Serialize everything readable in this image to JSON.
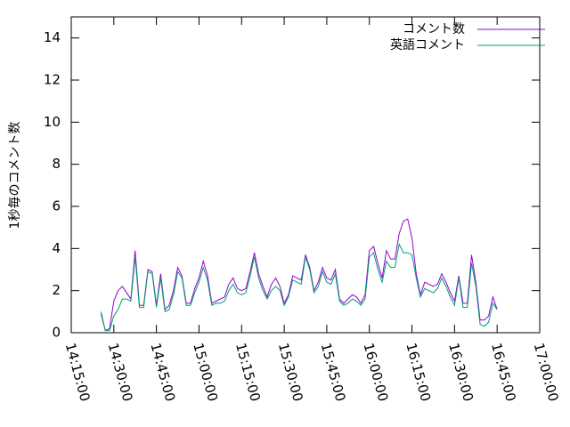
{
  "chart_data": {
    "type": "line",
    "ylabel": "1秒毎のコメント数",
    "x": [
      "14:25:30",
      "14:27:00",
      "14:28:30",
      "14:30:00",
      "14:31:30",
      "14:33:00",
      "14:34:30",
      "14:36:00",
      "14:37:30",
      "14:39:00",
      "14:40:30",
      "14:42:00",
      "14:43:30",
      "14:45:00",
      "14:46:30",
      "14:48:00",
      "14:49:30",
      "14:51:00",
      "14:52:30",
      "14:54:00",
      "14:55:30",
      "14:57:00",
      "14:58:30",
      "15:00:00",
      "15:01:30",
      "15:03:00",
      "15:04:30",
      "15:06:00",
      "15:07:30",
      "15:09:00",
      "15:10:30",
      "15:12:00",
      "15:13:30",
      "15:15:00",
      "15:16:30",
      "15:18:00",
      "15:19:30",
      "15:21:00",
      "15:22:30",
      "15:24:00",
      "15:25:30",
      "15:27:00",
      "15:28:30",
      "15:30:00",
      "15:31:30",
      "15:33:00",
      "15:34:30",
      "15:36:00",
      "15:37:30",
      "15:39:00",
      "15:40:30",
      "15:42:00",
      "15:43:30",
      "15:45:00",
      "15:46:30",
      "15:48:00",
      "15:49:30",
      "15:51:00",
      "15:52:30",
      "15:54:00",
      "15:55:30",
      "15:57:00",
      "15:58:30",
      "16:00:00",
      "16:01:30",
      "16:03:00",
      "16:04:30",
      "16:06:00",
      "16:07:30",
      "16:09:00",
      "16:10:30",
      "16:12:00",
      "16:13:30",
      "16:15:00",
      "16:16:30",
      "16:18:00",
      "16:19:30",
      "16:21:00",
      "16:22:30",
      "16:24:00",
      "16:25:30",
      "16:27:00",
      "16:28:30",
      "16:30:00",
      "16:31:30",
      "16:33:00",
      "16:34:30",
      "16:36:00",
      "16:37:30",
      "16:39:00",
      "16:40:30",
      "16:42:00",
      "16:43:30",
      "16:45:00"
    ],
    "series": [
      {
        "name": "コメント数",
        "color": "#9400d3",
        "values": [
          0.9,
          0.1,
          0.2,
          1.5,
          2.0,
          2.2,
          1.9,
          1.6,
          3.9,
          1.3,
          1.3,
          3.0,
          2.9,
          1.3,
          2.8,
          1.1,
          1.3,
          2.0,
          3.1,
          2.7,
          1.4,
          1.4,
          2.1,
          2.6,
          3.4,
          2.7,
          1.4,
          1.5,
          1.6,
          1.7,
          2.3,
          2.6,
          2.1,
          2.0,
          2.1,
          2.9,
          3.8,
          2.8,
          2.2,
          1.7,
          2.3,
          2.6,
          2.2,
          1.4,
          1.8,
          2.7,
          2.6,
          2.5,
          3.7,
          3.1,
          2.0,
          2.4,
          3.1,
          2.6,
          2.5,
          3.0,
          1.6,
          1.4,
          1.6,
          1.8,
          1.7,
          1.4,
          1.8,
          3.9,
          4.1,
          3.3,
          2.6,
          3.9,
          3.5,
          3.5,
          4.7,
          5.3,
          5.4,
          4.5,
          2.8,
          1.8,
          2.4,
          2.3,
          2.2,
          2.3,
          2.8,
          2.4,
          1.9,
          1.5,
          2.7,
          1.4,
          1.4,
          3.7,
          2.4,
          0.6,
          0.6,
          0.8,
          1.7,
          1.1
        ]
      },
      {
        "name": "英語コメント",
        "color": "#009e73",
        "values": [
          1.0,
          0.1,
          0.1,
          0.8,
          1.1,
          1.6,
          1.6,
          1.5,
          3.6,
          1.2,
          1.2,
          2.9,
          2.8,
          1.2,
          2.6,
          1.0,
          1.1,
          1.8,
          2.9,
          2.6,
          1.3,
          1.3,
          1.9,
          2.4,
          3.1,
          2.5,
          1.3,
          1.4,
          1.4,
          1.5,
          2.0,
          2.3,
          1.9,
          1.8,
          1.9,
          2.7,
          3.6,
          2.6,
          2.0,
          1.6,
          2.0,
          2.2,
          2.0,
          1.3,
          1.7,
          2.5,
          2.4,
          2.3,
          3.6,
          3.0,
          1.9,
          2.2,
          2.9,
          2.4,
          2.3,
          2.8,
          1.5,
          1.3,
          1.4,
          1.6,
          1.5,
          1.3,
          1.6,
          3.6,
          3.8,
          3.0,
          2.4,
          3.4,
          3.1,
          3.1,
          4.2,
          3.8,
          3.8,
          3.7,
          2.6,
          1.7,
          2.1,
          2.0,
          1.9,
          2.1,
          2.6,
          2.2,
          1.7,
          1.3,
          2.6,
          1.2,
          1.2,
          3.3,
          2.2,
          0.4,
          0.3,
          0.5,
          1.4,
          1.1
        ]
      }
    ],
    "xlim": [
      "14:15:00",
      "17:00:00"
    ],
    "xticks": [
      "14:15:00",
      "14:30:00",
      "14:45:00",
      "15:00:00",
      "15:15:00",
      "15:30:00",
      "15:45:00",
      "16:00:00",
      "16:15:00",
      "16:30:00",
      "16:45:00",
      "17:00:00"
    ],
    "ylim": [
      0,
      15
    ],
    "yticks": [
      0,
      2,
      4,
      6,
      8,
      10,
      12,
      14
    ],
    "legend": "upper right"
  }
}
